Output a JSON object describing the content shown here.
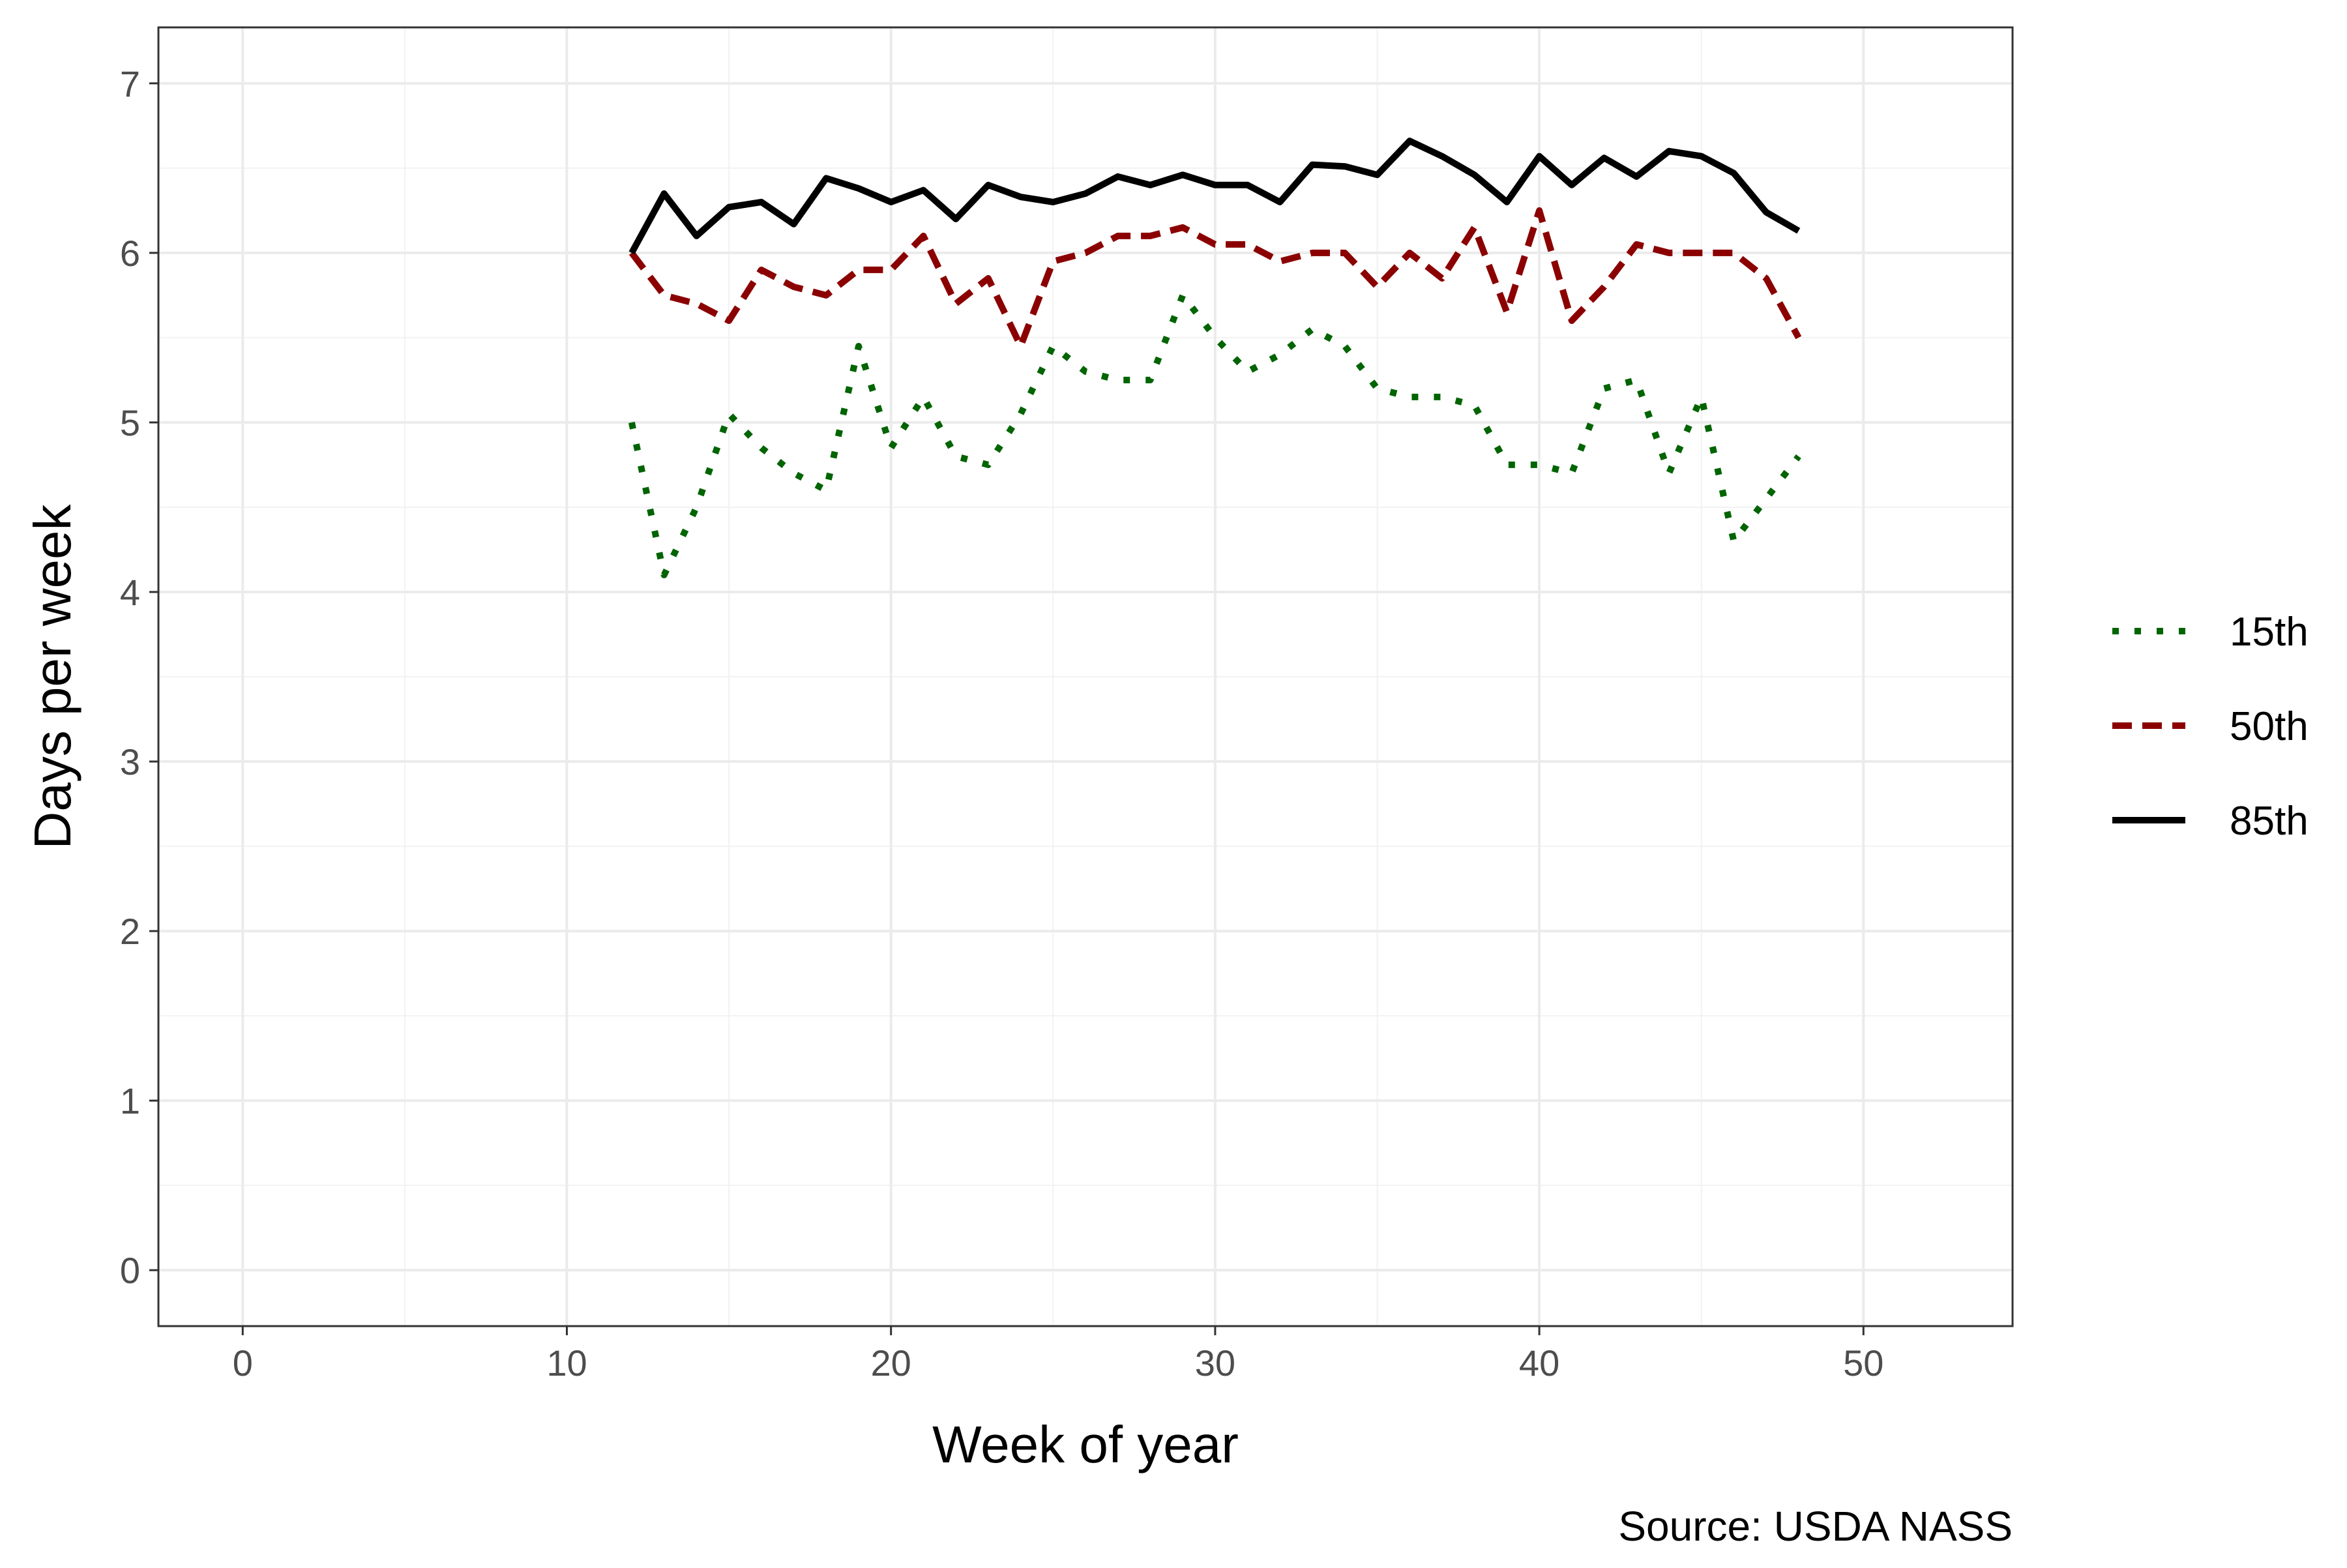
{
  "chart_data": {
    "type": "line",
    "title": "",
    "xlabel": "Week of year",
    "ylabel": "Days per week",
    "caption": "Source: USDA NASS",
    "xlim": [
      -2.6,
      54.6
    ],
    "ylim": [
      -0.33,
      7.33
    ],
    "x_ticks": [
      0,
      10,
      20,
      30,
      40,
      50
    ],
    "x_tick_labels": [
      "0",
      "10",
      "20",
      "30",
      "40",
      "50"
    ],
    "y_ticks": [
      0,
      1,
      2,
      3,
      4,
      5,
      6,
      7
    ],
    "y_tick_labels": [
      "0",
      "1",
      "2",
      "3",
      "4",
      "5",
      "6",
      "7"
    ],
    "grid": true,
    "legend_position": "right",
    "x": [
      12,
      13,
      14,
      15,
      16,
      17,
      18,
      19,
      20,
      21,
      22,
      23,
      24,
      25,
      26,
      27,
      28,
      29,
      30,
      31,
      32,
      33,
      34,
      35,
      36,
      37,
      38,
      39,
      40,
      41,
      42,
      43,
      44,
      45,
      46,
      47,
      48
    ],
    "series": [
      {
        "name": "15th",
        "color": "#006400",
        "dash": "dotted",
        "values": [
          5.0,
          4.1,
          4.5,
          5.05,
          4.85,
          4.7,
          4.6,
          5.45,
          4.85,
          5.15,
          4.8,
          4.75,
          5.05,
          5.45,
          5.3,
          5.25,
          5.25,
          5.75,
          5.5,
          5.3,
          5.4,
          5.55,
          5.45,
          5.2,
          5.15,
          5.15,
          5.1,
          4.75,
          4.75,
          4.7,
          5.2,
          5.25,
          4.7,
          5.15,
          4.3,
          4.55,
          4.8
        ]
      },
      {
        "name": "50th",
        "color": "#8B0000",
        "dash": "dashed",
        "values": [
          6.0,
          5.75,
          5.7,
          5.6,
          5.9,
          5.8,
          5.75,
          5.9,
          5.9,
          6.1,
          5.7,
          5.85,
          5.45,
          5.95,
          6.0,
          6.1,
          6.1,
          6.15,
          6.05,
          6.05,
          5.95,
          6.0,
          6.0,
          5.8,
          6.0,
          5.85,
          6.15,
          5.65,
          6.25,
          5.6,
          5.8,
          6.05,
          6.0,
          6.0,
          6.0,
          5.85,
          5.5
        ]
      },
      {
        "name": "85th",
        "color": "#000000",
        "dash": "solid",
        "values": [
          6.0,
          6.35,
          6.1,
          6.27,
          6.3,
          6.17,
          6.44,
          6.38,
          6.3,
          6.37,
          6.2,
          6.4,
          6.33,
          6.3,
          6.35,
          6.45,
          6.4,
          6.46,
          6.4,
          6.4,
          6.3,
          6.52,
          6.51,
          6.46,
          6.66,
          6.57,
          6.46,
          6.3,
          6.57,
          6.4,
          6.56,
          6.45,
          6.6,
          6.57,
          6.47,
          6.24,
          6.13
        ]
      }
    ]
  }
}
